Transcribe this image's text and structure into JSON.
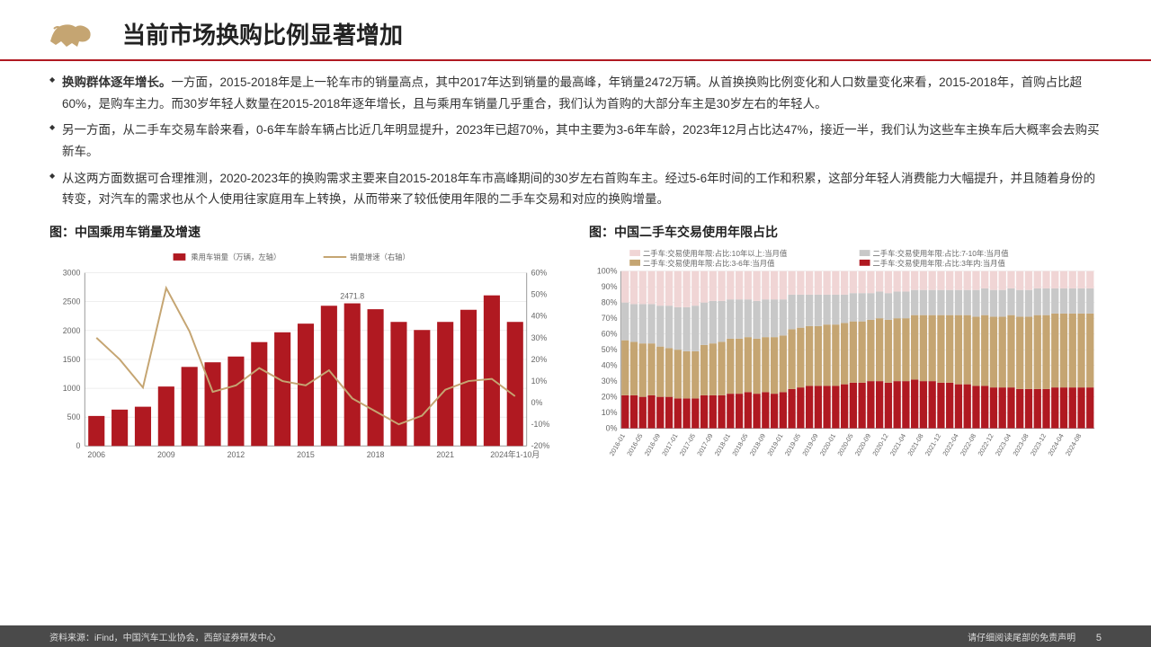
{
  "title": "当前市场换购比例显著增加",
  "bullets": [
    {
      "bold": "换购群体逐年增长。",
      "text": "一方面，2015-2018年是上一轮车市的销量高点，其中2017年达到销量的最高峰，年销量2472万辆。从首换换购比例变化和人口数量变化来看，2015-2018年，首购占比超60%，是购车主力。而30岁年轻人数量在2015-2018年逐年增长，且与乘用车销量几乎重合，我们认为首购的大部分车主是30岁左右的年轻人。"
    },
    {
      "bold": "",
      "text": "另一方面，从二手车交易车龄来看，0-6年车龄车辆占比近几年明显提升，2023年已超70%，其中主要为3-6年车龄，2023年12月占比达47%，接近一半，我们认为这些车主换车后大概率会去购买新车。"
    },
    {
      "bold": "",
      "text": "从这两方面数据可合理推测，2020-2023年的换购需求主要来自2015-2018年车市高峰期间的30岁左右首购车主。经过5-6年时间的工作和积累，这部分年轻人消费能力大幅提升，并且随着身份的转变，对汽车的需求也从个人使用往家庭用车上转换，从而带来了较低使用年限的二手车交易和对应的换购增量。"
    }
  ],
  "chart1": {
    "title": "图：中国乘用车销量及增速",
    "legend_bar": "乘用车销量（万辆，左轴）",
    "legend_line": "销量增速（右轴）",
    "bar_color": "#b01921",
    "line_color": "#c5a572",
    "grid_color": "#ddd",
    "y_left": {
      "min": 0,
      "max": 3000,
      "step": 500
    },
    "y_right": {
      "min": -20,
      "max": 60,
      "step": 10
    },
    "x_labels": [
      "2006",
      "",
      "",
      "2009",
      "",
      "",
      "2012",
      "",
      "",
      "2015",
      "",
      "",
      "2018",
      "",
      "",
      "2021",
      "",
      "",
      "2024年1-10月"
    ],
    "annotation": "2471.8",
    "bars": [
      520,
      630,
      680,
      1030,
      1370,
      1450,
      1550,
      1800,
      1970,
      2120,
      2430,
      2471.8,
      2370,
      2150,
      2010,
      2150,
      2360,
      2610,
      2150
    ],
    "line": [
      30,
      20,
      7,
      53,
      33,
      5,
      8,
      16,
      10,
      8,
      15,
      2,
      -4,
      -10,
      -6,
      6,
      10,
      11,
      3
    ]
  },
  "chart2": {
    "title": "图：中国二手车交易使用年限占比",
    "legend": [
      {
        "label": "二手车:交易使用年限:占比:10年以上:当月值",
        "color": "#f0d5d5"
      },
      {
        "label": "二手车:交易使用年限:占比:7-10年:当月值",
        "color": "#c8c8c8"
      },
      {
        "label": "二手车:交易使用年限:占比:3-6年:当月值",
        "color": "#c5a572"
      },
      {
        "label": "二手车:交易使用年限:占比:3年内:当月值",
        "color": "#b01921"
      }
    ],
    "grid_color": "#ddd",
    "y": {
      "min": 0,
      "max": 100,
      "step": 10
    },
    "x_ticks": [
      "2016-01",
      "2016-05",
      "2016-09",
      "2017-01",
      "2017-05",
      "2017-09",
      "2018-01",
      "2018-05",
      "2018-09",
      "2019-01",
      "2019-05",
      "2019-09",
      "2020-01",
      "2020-05",
      "2020-09",
      "2020-12",
      "2021-04",
      "2021-08",
      "2021-12",
      "2022-04",
      "2022-08",
      "2022-12",
      "2023-04",
      "2023-08",
      "2023-12",
      "2024-04",
      "2024-08"
    ],
    "series_count": 54,
    "series": {
      "s3yr": [
        21,
        21,
        20,
        21,
        20,
        20,
        19,
        19,
        19,
        21,
        21,
        21,
        22,
        22,
        23,
        22,
        23,
        22,
        23,
        25,
        26,
        27,
        27,
        27,
        27,
        28,
        29,
        29,
        30,
        30,
        29,
        30,
        30,
        31,
        30,
        30,
        29,
        29,
        28,
        28,
        27,
        27,
        26,
        26,
        26,
        25,
        25,
        25,
        25,
        26,
        26,
        26,
        26,
        26
      ],
      "s3_6": [
        35,
        34,
        34,
        33,
        32,
        31,
        31,
        30,
        30,
        32,
        33,
        34,
        35,
        35,
        35,
        35,
        35,
        36,
        36,
        38,
        38,
        38,
        38,
        39,
        39,
        39,
        39,
        39,
        39,
        40,
        40,
        40,
        40,
        41,
        42,
        42,
        43,
        43,
        44,
        44,
        44,
        45,
        45,
        45,
        46,
        46,
        46,
        47,
        47,
        47,
        47,
        47,
        47,
        47
      ],
      "s7_10": [
        24,
        24,
        25,
        25,
        26,
        27,
        27,
        28,
        29,
        27,
        27,
        26,
        25,
        25,
        24,
        24,
        24,
        24,
        23,
        22,
        21,
        20,
        20,
        19,
        19,
        18,
        18,
        18,
        17,
        17,
        17,
        17,
        17,
        16,
        16,
        16,
        16,
        16,
        16,
        16,
        17,
        17,
        17,
        17,
        17,
        17,
        17,
        17,
        17,
        16,
        16,
        16,
        16,
        16
      ],
      "s10plus": [
        20,
        21,
        21,
        21,
        22,
        22,
        23,
        23,
        22,
        20,
        19,
        19,
        18,
        18,
        18,
        19,
        18,
        18,
        18,
        15,
        15,
        15,
        15,
        15,
        15,
        15,
        14,
        14,
        14,
        13,
        14,
        13,
        13,
        12,
        12,
        12,
        12,
        12,
        12,
        12,
        12,
        11,
        12,
        12,
        11,
        12,
        12,
        11,
        11,
        11,
        11,
        11,
        11,
        11
      ]
    }
  },
  "footer": {
    "source": "资料来源：iFind，中国汽车工业协会，西部证券研发中心",
    "disclaimer": "请仔细阅读尾部的免责声明",
    "page": "5"
  }
}
